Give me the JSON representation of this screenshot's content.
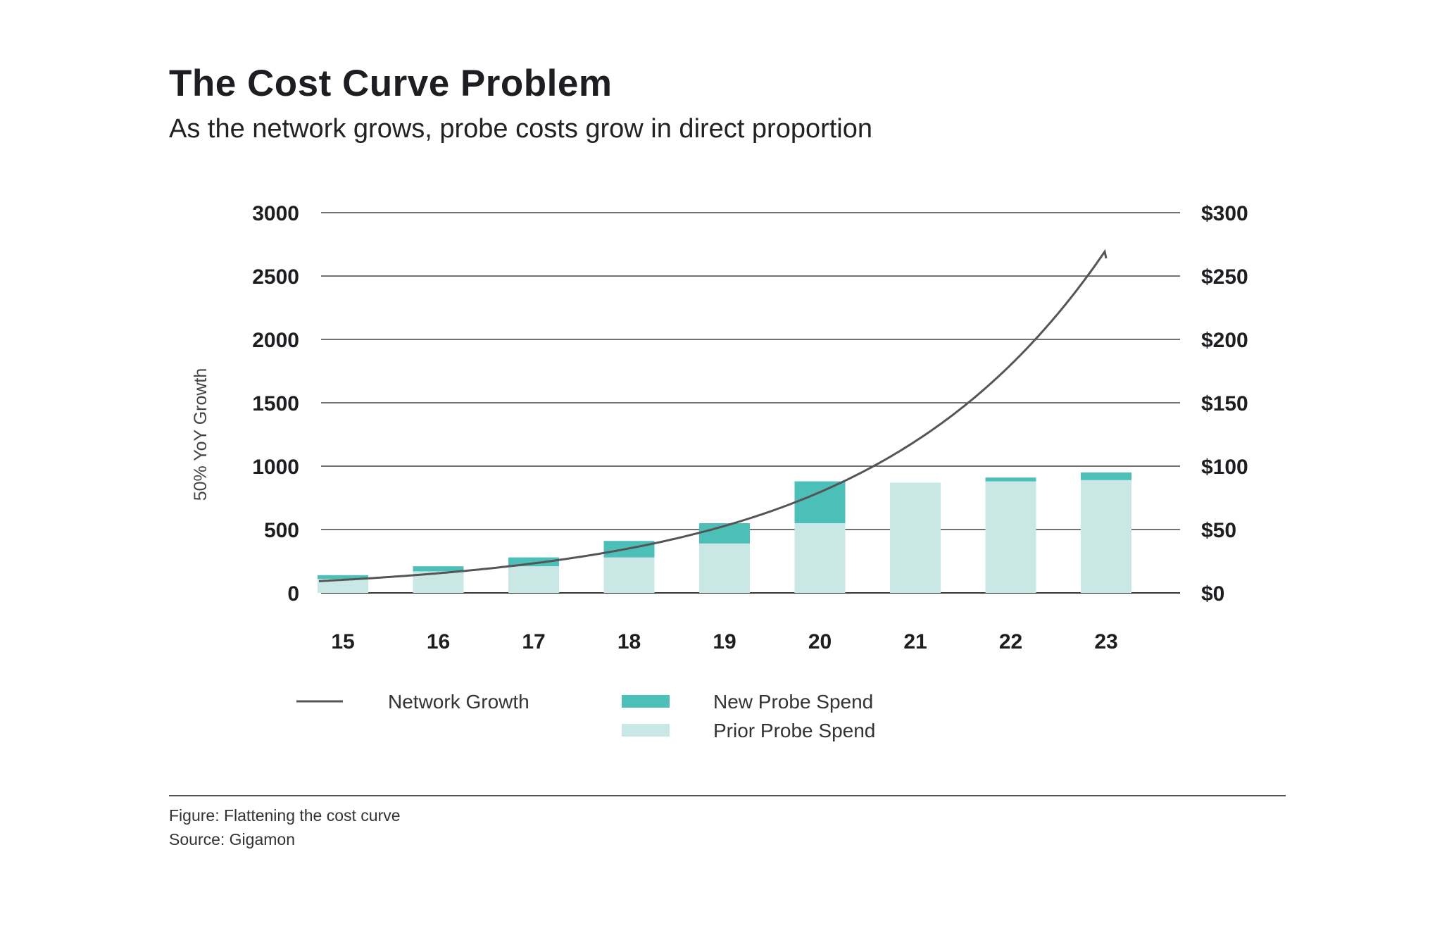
{
  "title": "The Cost Curve Problem",
  "subtitle": "As the network grows, probe costs grow in direct proportion",
  "footer": {
    "figure": "Figure: Flattening the cost curve",
    "source": "Source: Gigamon"
  },
  "chart_data": {
    "type": "bar+line",
    "title": "The Cost Curve Problem",
    "subtitle": "As the network grows, probe costs grow in direct proportion",
    "categories": [
      "15",
      "16",
      "17",
      "18",
      "19",
      "20",
      "21",
      "22",
      "23"
    ],
    "y_left": {
      "label": "50% YoY Growth",
      "range": [
        0,
        3000
      ],
      "ticks": [
        "0",
        "500",
        "1000",
        "1500",
        "2000",
        "2500",
        "3000"
      ]
    },
    "y_right": {
      "label": "",
      "range": [
        0,
        300
      ],
      "ticks": [
        "$0",
        "$50",
        "$100",
        "$150",
        "$200",
        "$250",
        "$300"
      ]
    },
    "grid": true,
    "legend_placement": "bottom",
    "series": [
      {
        "name": "Network Growth",
        "type": "line",
        "axis": "left",
        "color": "#555555",
        "values": [
          103,
          155,
          232,
          348,
          521,
          782,
          1173,
          1760,
          2640
        ]
      },
      {
        "name": "Prior Probe Spend",
        "type": "stacked-bar",
        "axis": "right",
        "color": "#c9e8e5",
        "values": [
          11,
          17,
          21,
          28,
          39,
          55,
          87,
          88,
          89
        ]
      },
      {
        "name": "New Probe Spend",
        "type": "stacked-bar",
        "axis": "right",
        "color": "#4dbfb9",
        "values": [
          3,
          4,
          7,
          13,
          16,
          33,
          0,
          3,
          6
        ]
      }
    ]
  }
}
